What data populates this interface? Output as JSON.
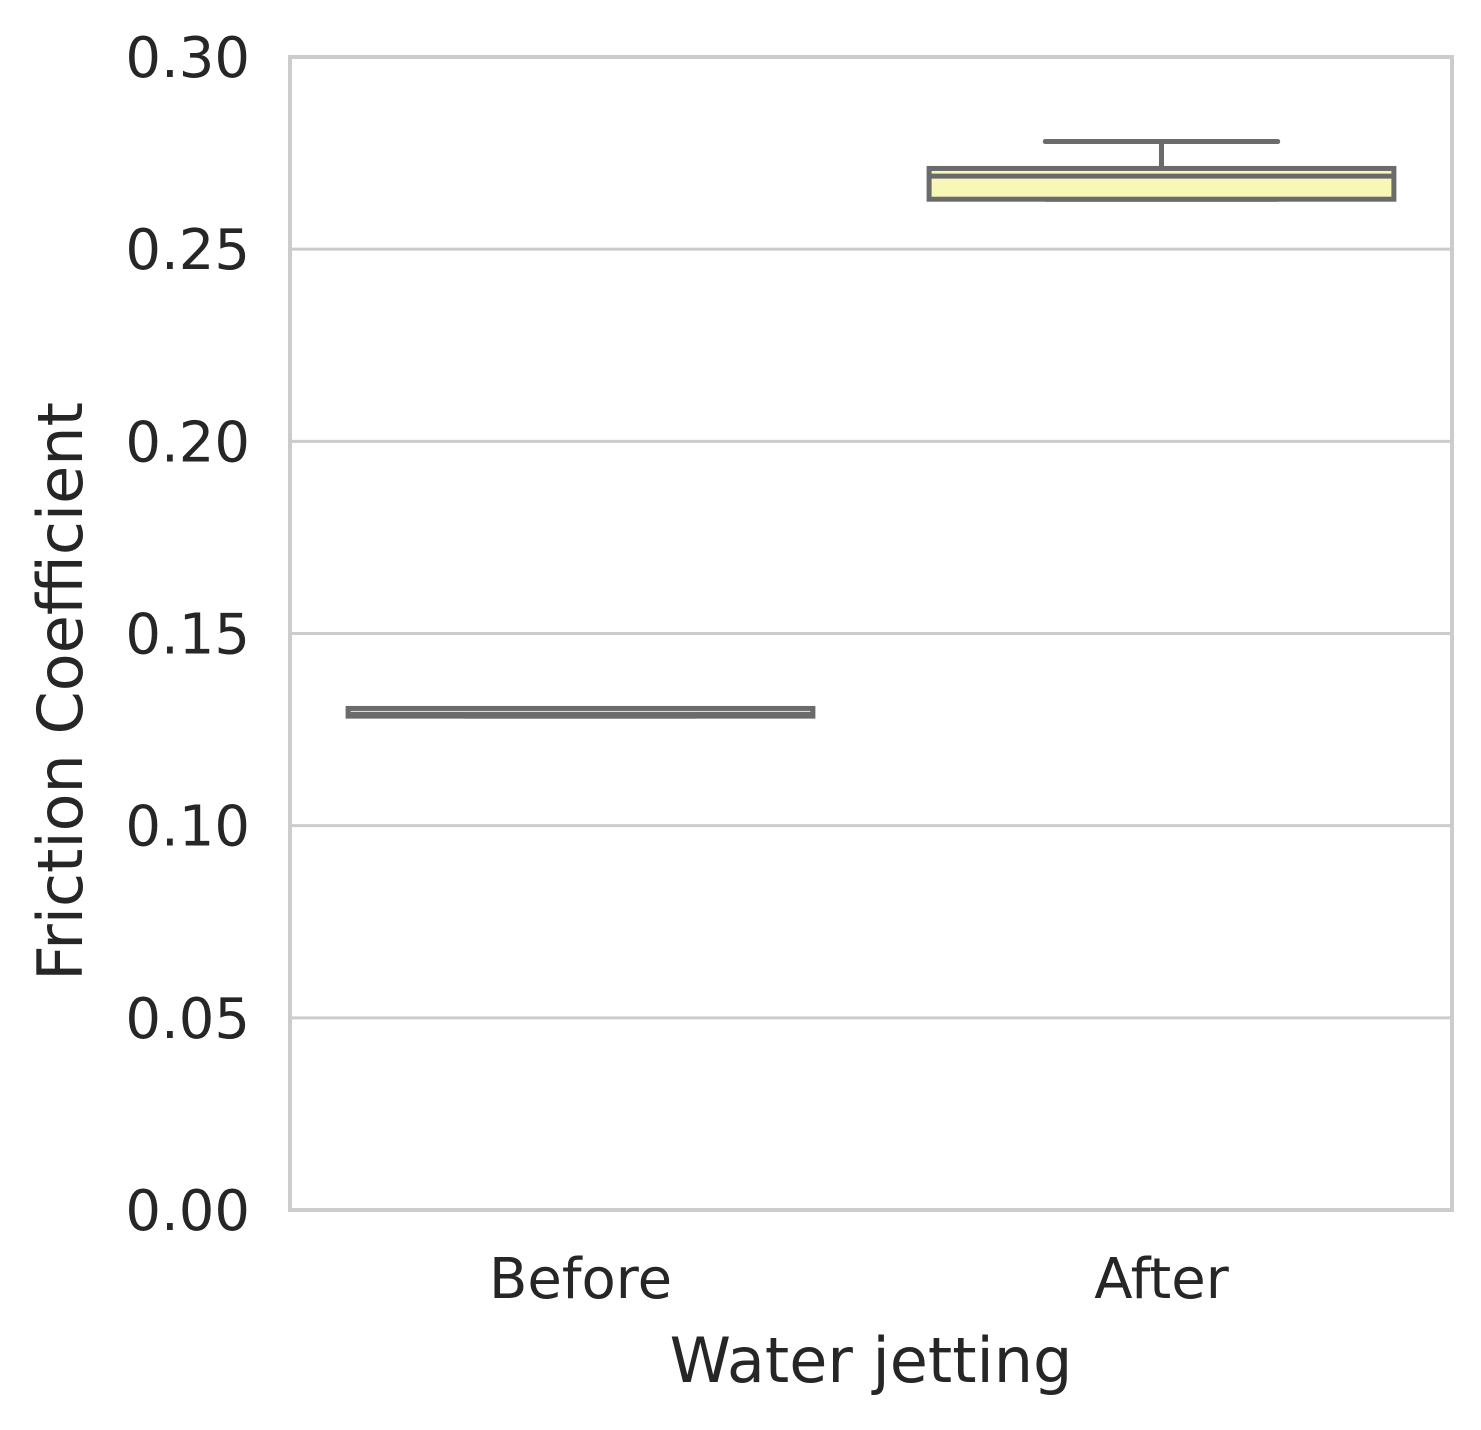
{
  "chart_data": {
    "type": "box",
    "xlabel": "Water jetting",
    "ylabel": "Friction Coefficient",
    "ylim": [
      0,
      0.3
    ],
    "yticks": [
      "0.00",
      "0.05",
      "0.10",
      "0.15",
      "0.20",
      "0.25",
      "0.30"
    ],
    "grid": "horizontal",
    "categories": [
      "Before",
      "After"
    ],
    "boxes": [
      {
        "category": "Before",
        "whisker_low": 0.1285,
        "q1": 0.1285,
        "median": 0.129,
        "q3": 0.1305,
        "whisker_high": 0.1305,
        "fill": "#ffffff"
      },
      {
        "category": "After",
        "whisker_low": 0.263,
        "q1": 0.263,
        "median": 0.269,
        "q3": 0.271,
        "whisker_high": 0.278,
        "fill": "#f7f7b8"
      }
    ],
    "colors": {
      "box_edge": "#6b6b6b",
      "grid": "#cccccc",
      "frame": "#cccccc",
      "text": "#262626"
    }
  }
}
